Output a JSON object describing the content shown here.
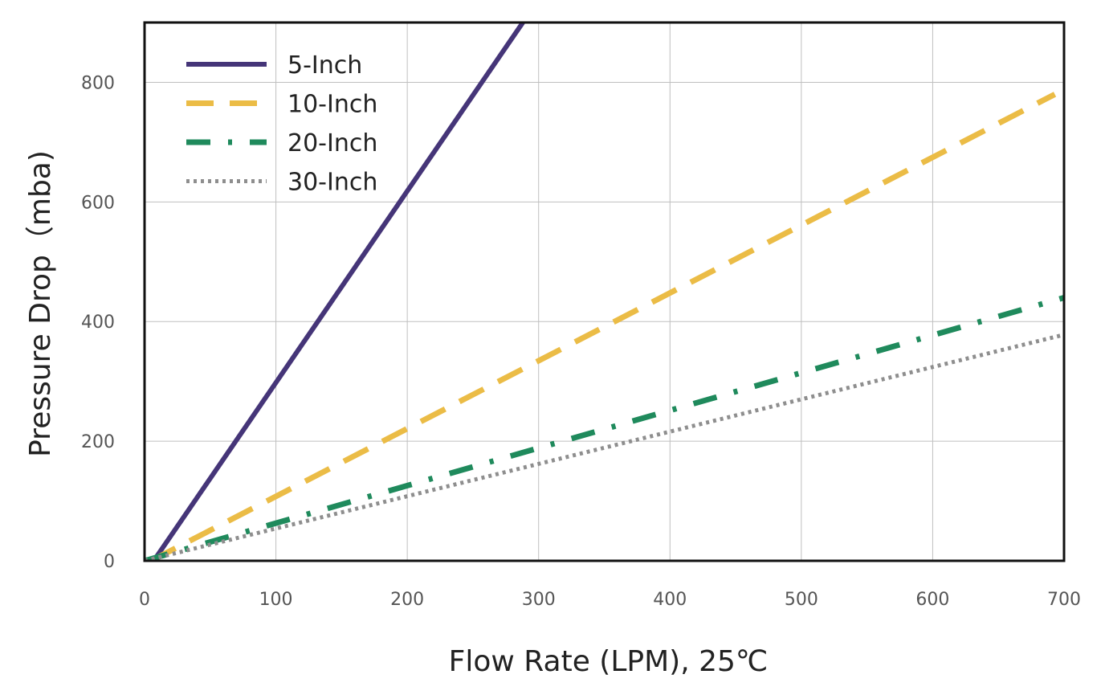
{
  "chart_data": {
    "type": "line",
    "title": "",
    "xlabel": "Flow Rate (LPM), 25℃",
    "ylabel": "Pressure Drop（mba)",
    "xlim": [
      0,
      700
    ],
    "ylim": [
      0,
      900
    ],
    "x_ticks": [
      "0",
      "100",
      "200",
      "300",
      "400",
      "500",
      "600",
      "700"
    ],
    "y_ticks": [
      "0",
      "200",
      "400",
      "600",
      "800"
    ],
    "grid": true,
    "legend_position": "top-left",
    "series": [
      {
        "name": "5-Inch",
        "style": "solid",
        "color": "#453578",
        "x": [
          7,
          288
        ],
        "y": [
          0,
          900
        ]
      },
      {
        "name": "10-Inch",
        "style": "dashed",
        "color": "#EBBC46",
        "x": [
          5,
          693
        ],
        "y": [
          0,
          780
        ]
      },
      {
        "name": "20-Inch",
        "style": "dash-dot",
        "color": "#1F8A5C",
        "x": [
          0,
          700
        ],
        "y": [
          0,
          440
        ]
      },
      {
        "name": "30-Inch",
        "style": "dotted",
        "color": "#8E8E8E",
        "x": [
          0,
          700
        ],
        "y": [
          0,
          378
        ]
      }
    ]
  }
}
